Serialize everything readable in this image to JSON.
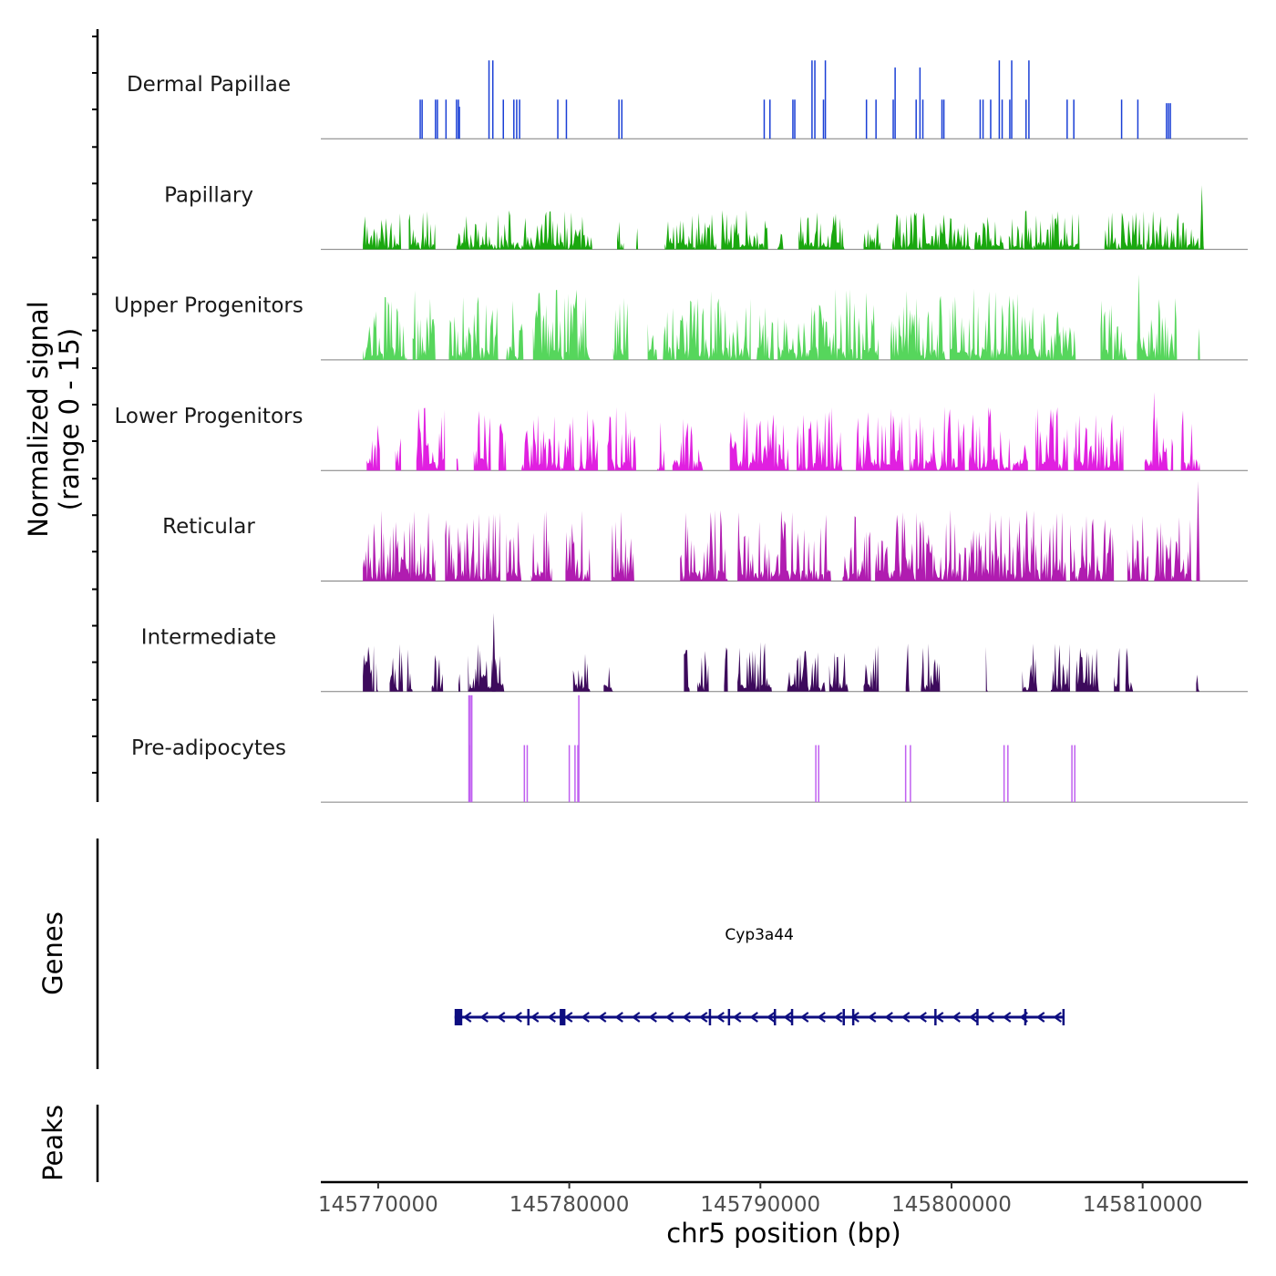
{
  "chart_data": {
    "type": "area",
    "chromosome": "chr5",
    "xlabel": "chr5 position (bp)",
    "xlim": [
      145767000,
      145815500
    ],
    "x_ticks": [
      145770000,
      145780000,
      145790000,
      145800000,
      145810000
    ],
    "x_tick_labels": [
      "145770000",
      "145780000",
      "145790000",
      "145800000",
      "145810000"
    ],
    "signal_panel": {
      "ylabel_line1": "Normalized signal",
      "ylabel_line2": "(range 0 - 15)",
      "ylim": [
        0,
        15
      ]
    },
    "series": [
      {
        "name": "Dermal Papillae",
        "color": "#1a3fd6",
        "peaks": [
          [
            145772200,
            0.12,
            5.5
          ],
          [
            145772300,
            0.12,
            5.5
          ],
          [
            145773000,
            0.12,
            5.5
          ],
          [
            145773100,
            0.12,
            5.5
          ],
          [
            145773550,
            0.12,
            5.5
          ],
          [
            145774100,
            0.12,
            5.5
          ],
          [
            145774200,
            0.12,
            5.5
          ],
          [
            145774250,
            0.12,
            4.5
          ],
          [
            145775800,
            0.12,
            11
          ],
          [
            145776000,
            0.12,
            11
          ],
          [
            145776550,
            0.12,
            5.5
          ],
          [
            145777100,
            0.12,
            5.5
          ],
          [
            145777250,
            0.12,
            5.5
          ],
          [
            145777400,
            0.12,
            5.5
          ],
          [
            145779400,
            0.12,
            5.5
          ],
          [
            145779850,
            0.12,
            5.5
          ],
          [
            145782600,
            0.12,
            5.5
          ],
          [
            145782750,
            0.12,
            5.5
          ],
          [
            145790200,
            0.12,
            5.5
          ],
          [
            145790500,
            0.12,
            5.5
          ],
          [
            145791700,
            0.12,
            5.5
          ],
          [
            145791800,
            0.12,
            5.5
          ],
          [
            145792700,
            0.12,
            11
          ],
          [
            145792850,
            0.12,
            11
          ],
          [
            145793300,
            0.12,
            5.5
          ],
          [
            145793400,
            0.12,
            11
          ],
          [
            145795550,
            0.12,
            5.5
          ],
          [
            145796050,
            0.12,
            5.5
          ],
          [
            145796950,
            0.12,
            5.5
          ],
          [
            145797050,
            0.12,
            10
          ],
          [
            145798150,
            0.12,
            5.5
          ],
          [
            145798350,
            0.12,
            10
          ],
          [
            145798500,
            0.12,
            5.5
          ],
          [
            145799500,
            0.12,
            5.5
          ],
          [
            145799600,
            0.12,
            5.5
          ],
          [
            145801500,
            0.12,
            5.5
          ],
          [
            145801650,
            0.12,
            5.5
          ],
          [
            145802050,
            0.12,
            5.5
          ],
          [
            145802500,
            0.12,
            11
          ],
          [
            145802650,
            0.12,
            5.5
          ],
          [
            145803050,
            0.12,
            5.5
          ],
          [
            145803150,
            0.12,
            11
          ],
          [
            145803900,
            0.12,
            5.5
          ],
          [
            145804050,
            0.12,
            11
          ],
          [
            145806050,
            0.12,
            5.5
          ],
          [
            145806400,
            0.12,
            5.5
          ],
          [
            145808900,
            0.12,
            5.5
          ],
          [
            145809750,
            0.12,
            5.5
          ],
          [
            145811250,
            0.12,
            5
          ],
          [
            145811350,
            0.12,
            5
          ],
          [
            145811450,
            0.12,
            5
          ]
        ]
      },
      {
        "name": "Papillary",
        "color": "#1aa80f",
        "regions": [
          [
            145769200,
            145771200
          ],
          [
            145771600,
            145773000
          ],
          [
            145774100,
            145781200
          ],
          [
            145782500,
            145782850
          ],
          [
            145783500,
            145783600
          ],
          [
            145785000,
            145787700
          ],
          [
            145787950,
            145790400
          ],
          [
            145790900,
            145791200
          ],
          [
            145792000,
            145794400
          ],
          [
            145795400,
            145796300
          ],
          [
            145796900,
            145801000
          ],
          [
            145801200,
            145802800
          ],
          [
            145803000,
            145806700
          ],
          [
            145808000,
            145810100
          ],
          [
            145810200,
            145813200
          ]
        ],
        "max_height": 5.5,
        "spike": [
          145813100,
          9
        ]
      },
      {
        "name": "Upper Progenitors",
        "color": "#56d65c",
        "regions": [
          [
            145769200,
            145771500
          ],
          [
            145771800,
            145773000
          ],
          [
            145773700,
            145776300
          ],
          [
            145776700,
            145777600
          ],
          [
            145778100,
            145781100
          ],
          [
            145782300,
            145783100
          ],
          [
            145784100,
            145784600
          ],
          [
            145784900,
            145789500
          ],
          [
            145789800,
            145790700
          ],
          [
            145790900,
            145796200
          ],
          [
            145796800,
            145799700
          ],
          [
            145799900,
            145806500
          ],
          [
            145807800,
            145809200
          ],
          [
            145809700,
            145811800
          ],
          [
            145812900,
            145813000
          ]
        ],
        "max_height": 10,
        "spike": [
          145809800,
          12
        ]
      },
      {
        "name": "Lower Progenitors",
        "color": "#e020e0",
        "regions": [
          [
            145769400,
            145770100
          ],
          [
            145770900,
            145771200
          ],
          [
            145772000,
            145773500
          ],
          [
            145774100,
            145774200
          ],
          [
            145775000,
            145775900
          ],
          [
            145776300,
            145776700
          ],
          [
            145777500,
            145780300
          ],
          [
            145780500,
            145781500
          ],
          [
            145782000,
            145783500
          ],
          [
            145784600,
            145785000
          ],
          [
            145785400,
            145787000
          ],
          [
            145788400,
            145791500
          ],
          [
            145791900,
            145794300
          ],
          [
            145795000,
            145797500
          ],
          [
            145797800,
            145800700
          ],
          [
            145800900,
            145804000
          ],
          [
            145804400,
            145806100
          ],
          [
            145806400,
            145809000
          ],
          [
            145810100,
            145811600
          ],
          [
            145812000,
            145813000
          ]
        ],
        "max_height": 9,
        "spike": [
          145810600,
          11
        ]
      },
      {
        "name": "Reticular",
        "color": "#b01cb0",
        "regions": [
          [
            145769200,
            145773000
          ],
          [
            145773500,
            145776400
          ],
          [
            145776700,
            145777500
          ],
          [
            145778000,
            145779100
          ],
          [
            145779800,
            145781100
          ],
          [
            145782200,
            145783400
          ],
          [
            145785800,
            145788300
          ],
          [
            145788800,
            145793700
          ],
          [
            145794300,
            145795800
          ],
          [
            145796000,
            145806000
          ],
          [
            145806200,
            145808500
          ],
          [
            145809200,
            145810300
          ],
          [
            145810600,
            145812600
          ]
        ],
        "max_height": 10,
        "spike": [
          145812900,
          14
        ]
      },
      {
        "name": "Intermediate",
        "color": "#3d0a5c",
        "regions": [
          [
            145769200,
            145769800
          ],
          [
            145769900,
            145770000
          ],
          [
            145770600,
            145771300
          ],
          [
            145771500,
            145771800
          ],
          [
            145772800,
            145773400
          ],
          [
            145774200,
            145774300
          ],
          [
            145774700,
            145776600
          ],
          [
            145780200,
            145781100
          ],
          [
            145781800,
            145782300
          ],
          [
            145786000,
            145786300
          ],
          [
            145786700,
            145787300
          ],
          [
            145788100,
            145788300
          ],
          [
            145788800,
            145790600
          ],
          [
            145791400,
            145793400
          ],
          [
            145793600,
            145794600
          ],
          [
            145795400,
            145796200
          ],
          [
            145797600,
            145797800
          ],
          [
            145798400,
            145799400
          ],
          [
            145801800,
            145801900
          ],
          [
            145803700,
            145804500
          ],
          [
            145805200,
            145806200
          ],
          [
            145806500,
            145807800
          ],
          [
            145808500,
            145808800
          ],
          [
            145809100,
            145809500
          ],
          [
            145812800,
            145813000
          ]
        ],
        "max_height": 7,
        "spike": [
          145776050,
          11
        ]
      },
      {
        "name": "Pre-adipocytes",
        "color": "#c060f0",
        "peaks": [
          [
            145774750,
            0.15,
            15
          ],
          [
            145774820,
            0.1,
            15
          ],
          [
            145774900,
            0.08,
            15
          ],
          [
            145774800,
            0.2,
            8
          ],
          [
            145777650,
            0.1,
            8
          ],
          [
            145777800,
            0.1,
            8
          ],
          [
            145780000,
            0.1,
            8
          ],
          [
            145780300,
            0.1,
            8
          ],
          [
            145780450,
            0.08,
            8
          ],
          [
            145780500,
            0.05,
            15
          ],
          [
            145792900,
            0.1,
            8
          ],
          [
            145793050,
            0.1,
            8
          ],
          [
            145797600,
            0.1,
            8
          ],
          [
            145797850,
            0.1,
            8
          ],
          [
            145802750,
            0.1,
            8
          ],
          [
            145802950,
            0.1,
            8
          ],
          [
            145806300,
            0.1,
            8
          ],
          [
            145806450,
            0.1,
            8
          ]
        ]
      }
    ],
    "genes_panel": {
      "ylabel": "Genes",
      "genes": [
        {
          "name": "Cyp3a44",
          "start": 145774000,
          "end": 145805900,
          "strand": "-",
          "color": "#0d0d80",
          "exons": [
            [
              145774000,
              145774400
            ],
            [
              145777800,
              145777900
            ],
            [
              145779500,
              145779800
            ],
            [
              145787300,
              145787350
            ],
            [
              145788300,
              145788400
            ],
            [
              145790700,
              145790750
            ],
            [
              145791600,
              145791700
            ],
            [
              145794300,
              145794400
            ],
            [
              145794800,
              145794900
            ],
            [
              145799100,
              145799200
            ],
            [
              145801300,
              145801350
            ],
            [
              145803800,
              145803850
            ],
            [
              145805800,
              145805900
            ]
          ]
        }
      ]
    },
    "peaks_panel": {
      "ylabel": "Peaks",
      "peaks": []
    }
  }
}
